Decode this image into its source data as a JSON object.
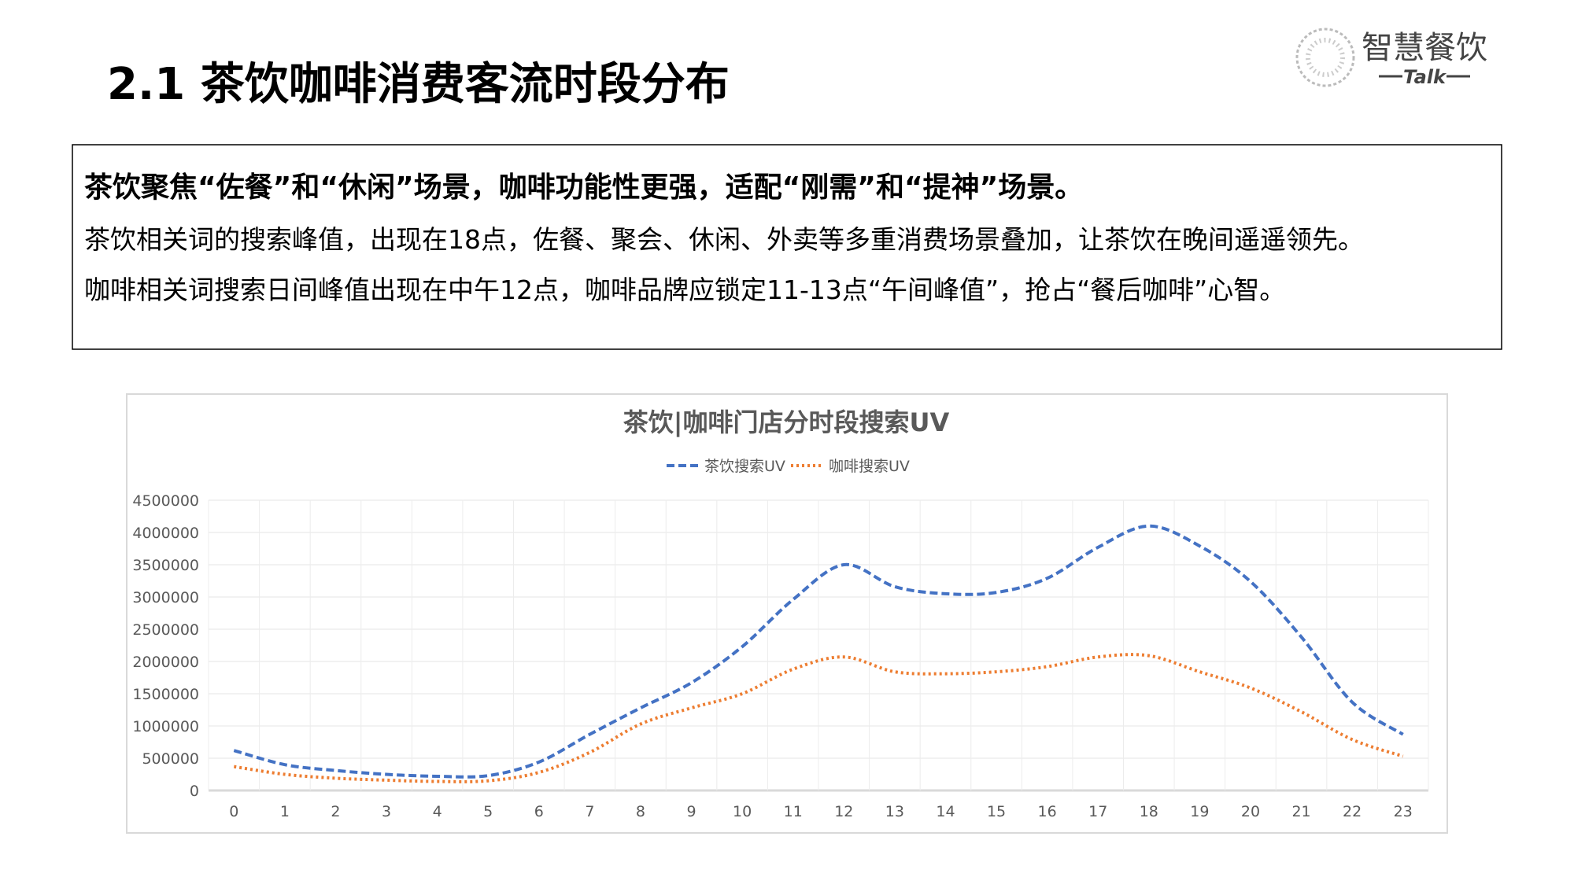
{
  "header": {
    "title": "2.1 茶饮咖啡消费客流时段分布",
    "logo_name": "智慧餐饮",
    "logo_tag": "Talk"
  },
  "summary": {
    "headline": "茶饮聚焦“佐餐”和“休闲”场景，咖啡功能性更强，适配“刚需”和“提神”场景。",
    "lines": [
      "茶饮相关词的搜索峰值，出现在18点，佐餐、聚会、休闲、外卖等多重消费场景叠加，让茶饮在晚间遥遥领先。",
      "咖啡相关词搜索日间峰值出现在中午12点，咖啡品牌应锁定11-13点“午间峰值”，抢占“餐后咖啡”心智。"
    ]
  },
  "chart_data": {
    "type": "line",
    "title": "茶饮|咖啡门店分时段搜索UV",
    "categories": [
      "0",
      "1",
      "2",
      "3",
      "4",
      "5",
      "6",
      "7",
      "8",
      "9",
      "10",
      "11",
      "12",
      "13",
      "14",
      "15",
      "16",
      "17",
      "18",
      "19",
      "20",
      "21",
      "22",
      "23"
    ],
    "series": [
      {
        "name": "茶饮搜索UV",
        "color": "#4472c4",
        "dash": "dashed",
        "values": [
          620000,
          400000,
          310000,
          250000,
          220000,
          230000,
          440000,
          870000,
          1280000,
          1670000,
          2230000,
          2960000,
          3500000,
          3160000,
          3050000,
          3070000,
          3290000,
          3770000,
          4100000,
          3790000,
          3240000,
          2380000,
          1370000,
          870000
        ]
      },
      {
        "name": "咖啡搜索UV",
        "color": "#ed7d31",
        "dash": "dotted",
        "values": [
          370000,
          250000,
          190000,
          160000,
          140000,
          150000,
          280000,
          590000,
          1030000,
          1280000,
          1500000,
          1880000,
          2070000,
          1840000,
          1810000,
          1840000,
          1920000,
          2070000,
          2090000,
          1840000,
          1590000,
          1220000,
          790000,
          530000
        ]
      }
    ],
    "ylim": [
      0,
      4500000
    ],
    "yticks": [
      0,
      500000,
      1000000,
      1500000,
      2000000,
      2500000,
      3000000,
      3500000,
      4000000,
      4500000
    ],
    "grid": true,
    "legend": "top"
  }
}
